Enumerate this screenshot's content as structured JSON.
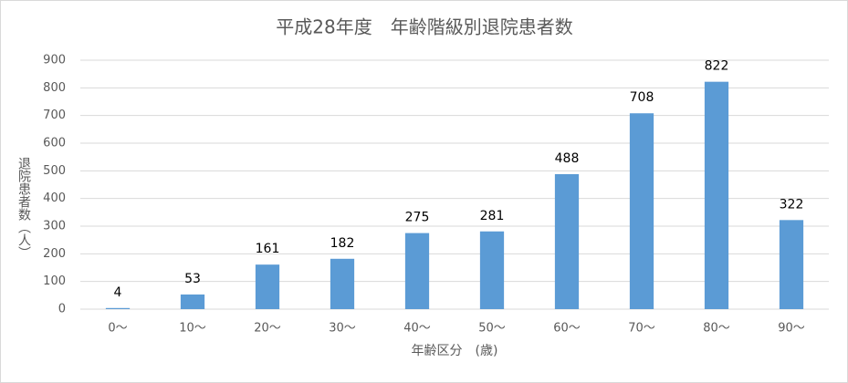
{
  "chart_data": {
    "type": "bar",
    "title": "平成28年度　年齢階級別退院患者数",
    "x_label": "年齢区分　(歳)",
    "y_label": "退院患者数（人）",
    "categories": [
      "0〜",
      "10〜",
      "20〜",
      "30〜",
      "40〜",
      "50〜",
      "60〜",
      "70〜",
      "80〜",
      "90〜"
    ],
    "values": [
      4,
      53,
      161,
      182,
      275,
      281,
      488,
      708,
      822,
      322
    ],
    "color": "#5b9bd5",
    "ylim": [
      0,
      900
    ],
    "yticks": [
      0,
      100,
      200,
      300,
      400,
      500,
      600,
      700,
      800,
      900
    ],
    "grid": true
  }
}
